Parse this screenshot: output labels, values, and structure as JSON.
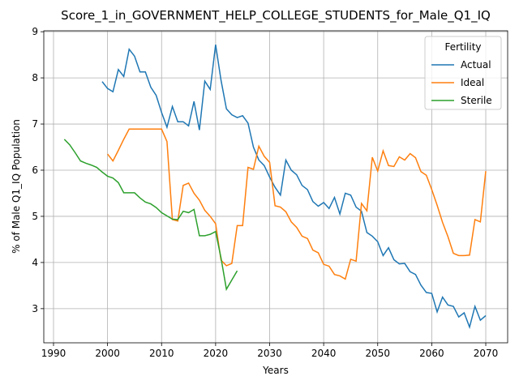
{
  "chart_data": {
    "type": "line",
    "title": "Score_1_in_GOVERNMENT_HELP_COLLEGE_STUDENTS_for_Male_Q1_IQ",
    "xlabel": "Years",
    "ylabel": "% of Male Q1_IQ Population",
    "legend_title": "Fertility",
    "legend": "upper right",
    "grid": true,
    "xlim": [
      1988.2,
      2074.05
    ],
    "ylim": [
      2.26,
      9.02
    ],
    "xticks": [
      1990,
      2000,
      2010,
      2020,
      2030,
      2040,
      2050,
      2060,
      2070
    ],
    "yticks": [
      3,
      4,
      5,
      6,
      7,
      8,
      9
    ],
    "series": [
      {
        "name": "Actual",
        "color": "#1f77b4",
        "x": [
          1999,
          2000,
          2001,
          2002,
          2003,
          2004,
          2005,
          2006,
          2007,
          2008,
          2009,
          2010,
          2011,
          2012,
          2013,
          2014,
          2015,
          2016,
          2017,
          2018,
          2019,
          2020,
          2021,
          2022,
          2023,
          2024,
          2025,
          2026,
          2027,
          2028,
          2029,
          2030,
          2031,
          2032,
          2033,
          2034,
          2035,
          2036,
          2037,
          2038,
          2039,
          2040,
          2041,
          2042,
          2043,
          2044,
          2045,
          2046,
          2047,
          2048,
          2049,
          2050,
          2051,
          2052,
          2053,
          2054,
          2055,
          2056,
          2057,
          2058,
          2059,
          2060,
          2061,
          2062,
          2063,
          2064,
          2065,
          2066,
          2067,
          2068,
          2069,
          2070
        ],
        "values": [
          7.92,
          7.77,
          7.7,
          8.18,
          8.03,
          8.62,
          8.47,
          8.13,
          8.13,
          7.8,
          7.62,
          7.25,
          6.93,
          7.38,
          7.05,
          7.05,
          6.96,
          7.49,
          6.87,
          7.93,
          7.75,
          8.72,
          7.95,
          7.33,
          7.2,
          7.14,
          7.18,
          7.02,
          6.5,
          6.22,
          6.1,
          5.85,
          5.63,
          5.46,
          6.22,
          6.0,
          5.9,
          5.67,
          5.58,
          5.32,
          5.22,
          5.3,
          5.17,
          5.41,
          5.05,
          5.5,
          5.46,
          5.2,
          5.11,
          4.65,
          4.57,
          4.45,
          4.15,
          4.32,
          4.06,
          3.97,
          3.98,
          3.8,
          3.74,
          3.51,
          3.35,
          3.33,
          2.93,
          3.25,
          3.08,
          3.05,
          2.82,
          2.91,
          2.6,
          3.05,
          2.75,
          2.85
        ]
      },
      {
        "name": "Ideal",
        "color": "#ff7f0e",
        "x": [
          2000,
          2001,
          2002,
          2003,
          2004,
          2005,
          2006,
          2007,
          2008,
          2009,
          2010,
          2011,
          2012,
          2013,
          2014,
          2015,
          2016,
          2017,
          2018,
          2019,
          2020,
          2021,
          2022,
          2023,
          2024,
          2025,
          2026,
          2027,
          2028,
          2029,
          2030,
          2031,
          2032,
          2033,
          2034,
          2035,
          2036,
          2037,
          2038,
          2039,
          2040,
          2041,
          2042,
          2043,
          2044,
          2045,
          2046,
          2047,
          2048,
          2049,
          2050,
          2051,
          2052,
          2053,
          2054,
          2055,
          2056,
          2057,
          2058,
          2059,
          2060,
          2061,
          2062,
          2063,
          2064,
          2065,
          2066,
          2067,
          2068,
          2069,
          2070
        ],
        "values": [
          6.35,
          6.2,
          6.43,
          6.67,
          6.89,
          6.89,
          6.89,
          6.89,
          6.89,
          6.89,
          6.89,
          6.62,
          4.93,
          4.9,
          5.67,
          5.72,
          5.5,
          5.35,
          5.13,
          5.0,
          4.84,
          4.05,
          3.93,
          3.98,
          4.8,
          4.8,
          6.06,
          6.02,
          6.52,
          6.3,
          6.17,
          5.23,
          5.2,
          5.1,
          4.88,
          4.76,
          4.57,
          4.52,
          4.27,
          4.21,
          3.96,
          3.92,
          3.74,
          3.71,
          3.64,
          4.07,
          4.03,
          5.28,
          5.12,
          6.28,
          5.98,
          6.42,
          6.1,
          6.08,
          6.29,
          6.22,
          6.36,
          6.27,
          5.97,
          5.89,
          5.58,
          5.24,
          4.87,
          4.56,
          4.2,
          4.15,
          4.15,
          4.16,
          4.93,
          4.88,
          5.98
        ]
      },
      {
        "name": "Sterile",
        "color": "#2ca02c",
        "x": [
          1992,
          1993,
          1994,
          1995,
          1996,
          1997,
          1998,
          1999,
          2000,
          2001,
          2002,
          2003,
          2004,
          2005,
          2006,
          2007,
          2008,
          2009,
          2010,
          2011,
          2012,
          2013,
          2014,
          2015,
          2016,
          2017,
          2018,
          2019,
          2020,
          2021,
          2022,
          2023,
          2024
        ],
        "values": [
          6.67,
          6.55,
          6.38,
          6.2,
          6.15,
          6.11,
          6.06,
          5.96,
          5.87,
          5.83,
          5.73,
          5.51,
          5.51,
          5.51,
          5.4,
          5.31,
          5.27,
          5.19,
          5.08,
          5.01,
          4.94,
          4.93,
          5.11,
          5.08,
          5.15,
          4.58,
          4.58,
          4.61,
          4.67,
          4.1,
          3.42,
          3.62,
          3.82
        ]
      }
    ]
  }
}
